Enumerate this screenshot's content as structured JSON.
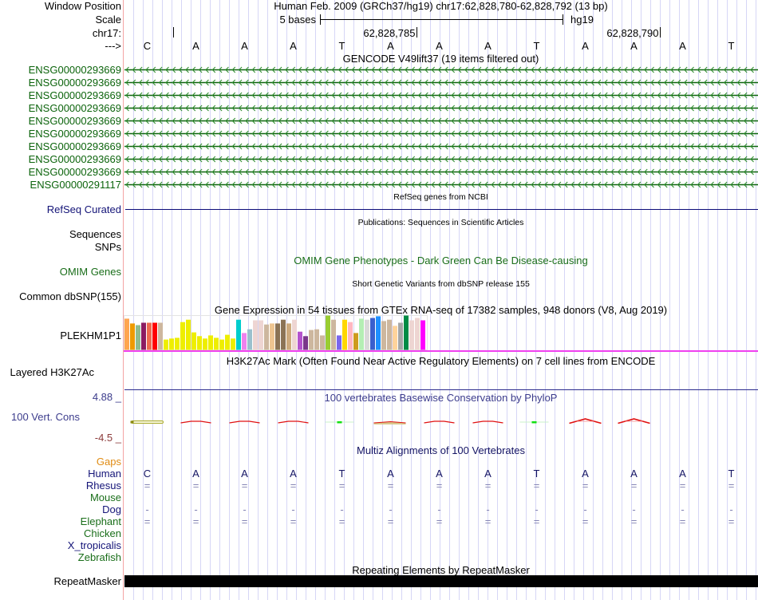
{
  "header": {
    "window_position_label": "Window Position",
    "window_position_value": "Human Feb. 2009 (GRCh37/hg19)   chr17:62,828,780-62,828,792 (13 bp)",
    "scale_label": "Scale",
    "scale_bar_text": "5 bases",
    "scale_assembly": "hg19",
    "chrom_label": "chr17:",
    "strand_label": "--->"
  },
  "region": {
    "chrom": "chr17",
    "start": 62828780,
    "end": 62828792,
    "length_bp": 13
  },
  "ruler": {
    "ticks": [
      {
        "position": 62828780,
        "label": ""
      },
      {
        "position": 62828785,
        "label": "62,828,785"
      },
      {
        "position": 62828790,
        "label": "62,828,790"
      }
    ]
  },
  "sequence": [
    "C",
    "A",
    "A",
    "A",
    "T",
    "A",
    "A",
    "A",
    "T",
    "A",
    "A",
    "A",
    "T"
  ],
  "tracks": {
    "gencode": {
      "title": "GENCODE V49lift37 (19 items filtered out)",
      "color": "#0c640c",
      "strand": "-",
      "items": [
        "ENSG00000293669",
        "ENSG00000293669",
        "ENSG00000293669",
        "ENSG00000293669",
        "ENSG00000293669",
        "ENSG00000293669",
        "ENSG00000293669",
        "ENSG00000293669",
        "ENSG00000293669",
        "ENSG00000291117"
      ]
    },
    "refseq": {
      "title": "RefSeq genes from NCBI",
      "label": "RefSeq Curated",
      "color": "#0c0c78"
    },
    "publications": {
      "title": "Publications: Sequences in Scientific Articles",
      "labels": [
        "Sequences",
        "SNPs"
      ]
    },
    "omim": {
      "title": "OMIM Gene Phenotypes - Dark Green Can Be Disease-causing",
      "label": "OMIM Genes",
      "color": "#1a6e1a"
    },
    "dbsnp": {
      "title": "Short Genetic Variants from dbSNP release 155",
      "label": "Common dbSNP(155)"
    },
    "gtex": {
      "title": "Gene Expression in 54 tissues from GTEx RNA-seq of 17382 samples, 948 donors (V8, Aug 2019)",
      "label": "PLEKHM1P1",
      "line_color": "#f040f0",
      "bars": [
        {
          "color": "#FFA54F",
          "value": 0.91
        },
        {
          "color": "#EE9A00",
          "value": 0.77
        },
        {
          "color": "#8FBC8F",
          "value": 0.72
        },
        {
          "color": "#8B1C62",
          "value": 0.79
        },
        {
          "color": "#EE6A50",
          "value": 0.79
        },
        {
          "color": "#FF0000",
          "value": 0.79
        },
        {
          "color": "#CDB79E",
          "value": 0.79
        },
        {
          "color": "#EEEE00",
          "value": 0.3
        },
        {
          "color": "#EEEE00",
          "value": 0.33
        },
        {
          "color": "#EEEE00",
          "value": 0.35
        },
        {
          "color": "#EEEE00",
          "value": 0.81
        },
        {
          "color": "#EEEE00",
          "value": 0.88
        },
        {
          "color": "#EEEE00",
          "value": 0.51
        },
        {
          "color": "#EEEE00",
          "value": 0.4
        },
        {
          "color": "#EEEE00",
          "value": 0.33
        },
        {
          "color": "#EEEE00",
          "value": 0.42
        },
        {
          "color": "#EEEE00",
          "value": 0.35
        },
        {
          "color": "#EEEE00",
          "value": 0.3
        },
        {
          "color": "#EEEE00",
          "value": 0.44
        },
        {
          "color": "#EEEE00",
          "value": 0.33
        },
        {
          "color": "#00CDCD",
          "value": 0.88
        },
        {
          "color": "#EE82EE",
          "value": 0.49
        },
        {
          "color": "#9AC0CD",
          "value": 0.6
        },
        {
          "color": "#EED5D2",
          "value": 0.86
        },
        {
          "color": "#EED5D2",
          "value": 0.86
        },
        {
          "color": "#CDB79E",
          "value": 0.74
        },
        {
          "color": "#EEC591",
          "value": 0.77
        },
        {
          "color": "#8B7355",
          "value": 0.77
        },
        {
          "color": "#8B7355",
          "value": 0.88
        },
        {
          "color": "#CDAA7D",
          "value": 0.77
        },
        {
          "color": "#EED5D2",
          "value": 0.88
        },
        {
          "color": "#B452CD",
          "value": 0.53
        },
        {
          "color": "#7A378B",
          "value": 0.4
        },
        {
          "color": "#CDB79E",
          "value": 0.58
        },
        {
          "color": "#CDB79E",
          "value": 0.6
        },
        {
          "color": "#CDB79E",
          "value": 0.42
        },
        {
          "color": "#9ACD32",
          "value": 1.0
        },
        {
          "color": "#CDB79E",
          "value": 0.88
        },
        {
          "color": "#7A67EE",
          "value": 0.42
        },
        {
          "color": "#FFD700",
          "value": 0.88
        },
        {
          "color": "#FFB6C1",
          "value": 0.81
        },
        {
          "color": "#CD9B1D",
          "value": 0.49
        },
        {
          "color": "#B4EEB4",
          "value": 0.91
        },
        {
          "color": "#D9D9D9",
          "value": 0.88
        },
        {
          "color": "#3A5FCD",
          "value": 0.93
        },
        {
          "color": "#1E90FF",
          "value": 0.98
        },
        {
          "color": "#CDB79E",
          "value": 0.84
        },
        {
          "color": "#CDB79E",
          "value": 0.88
        },
        {
          "color": "#FFD39B",
          "value": 0.7
        },
        {
          "color": "#A6A6A6",
          "value": 0.79
        },
        {
          "color": "#008B45",
          "value": 1.0
        },
        {
          "color": "#EED5D2",
          "value": 0.86
        },
        {
          "color": "#EED5D2",
          "value": 0.93
        },
        {
          "color": "#FF00FF",
          "value": 0.86
        }
      ]
    },
    "h3k27ac": {
      "title": "H3K27Ac Mark (Often Found Near Active Regulatory Elements) on 7 cell lines from ENCODE",
      "label": "Layered H3K27Ac",
      "line_color": "#2c2c8c"
    },
    "phylop": {
      "title": "100 vertebrates Basewise Conservation by PhyloP",
      "label": "100 Vert. Cons",
      "ymax_label": "4.88 _",
      "ymin_label": "-4.5 _",
      "color": "#3c3c8c",
      "ymin_color": "#8c3c3c",
      "glyphs": [
        "olive-outline",
        "red-peak",
        "red-peak",
        "red-peak",
        "green-dot",
        "red-fill",
        "red-peak",
        "red-peak",
        "green-dot",
        "red-peak-tall",
        "red-peak-tall",
        "none",
        "none"
      ]
    },
    "multiz": {
      "title": "Multiz Alignments of 100 Vertebrates",
      "title_color": "#141464",
      "gaps_label": "Gaps",
      "gaps_color": "#e08c14",
      "letter_color": "#141464",
      "symbol_color": "#8484b4",
      "species": [
        {
          "name": "Human",
          "color": "#141478",
          "alignment": "CAAATAAATAAAT"
        },
        {
          "name": "Rhesus",
          "color": "#141478",
          "alignment": "============="
        },
        {
          "name": "Mouse",
          "color": "#1a6e1a",
          "alignment": ""
        },
        {
          "name": "Dog",
          "color": "#141478",
          "alignment": "-------------"
        },
        {
          "name": "Elephant",
          "color": "#1a6e1a",
          "alignment": "============="
        },
        {
          "name": "Chicken",
          "color": "#1a6e1a",
          "alignment": ""
        },
        {
          "name": "X_tropicalis",
          "color": "#141478",
          "alignment": ""
        },
        {
          "name": "Zebrafish",
          "color": "#1a6e1a",
          "alignment": ""
        }
      ]
    },
    "repeatmasker": {
      "title": "Repeating Elements by RepeatMasker",
      "label": "RepeatMasker",
      "color": "#000000"
    }
  }
}
